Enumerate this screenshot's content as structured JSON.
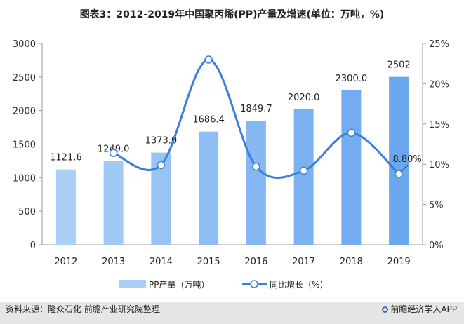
{
  "title": "图表3：2012-2019年中国聚丙烯(PP)产量及增速(单位：万吨，%)",
  "source": "资料来源：隆众石化 前瞻产业研究院整理",
  "brand": "前瞻经济学人APP",
  "brand_icon": "qianzhan-logo-icon",
  "colors": {
    "bar_start": "#a9cff7",
    "bar_end": "#6aa7ee",
    "line": "#3c7fd8",
    "marker_fill": "#ffffff",
    "axis": "#999999",
    "footer_bg": "#e6e6e6"
  },
  "chart_data": {
    "type": "bar",
    "categories": [
      "2012",
      "2013",
      "2014",
      "2015",
      "2016",
      "2017",
      "2018",
      "2019"
    ],
    "series": [
      {
        "name": "PP产量（万吨）",
        "type": "bar",
        "axis": "left",
        "values": [
          1121.6,
          1249.0,
          1373.0,
          1686.4,
          1849.7,
          2020.0,
          2300.0,
          2502
        ],
        "labels": [
          "1121.6",
          "1249.0",
          "1373.0",
          "1686.4",
          "1849.7",
          "2020.0",
          "2300.0",
          "2502"
        ]
      },
      {
        "name": "同比增长（%）",
        "type": "line",
        "axis": "right",
        "values": [
          null,
          11.4,
          9.9,
          23.0,
          9.7,
          9.2,
          13.9,
          8.8
        ]
      }
    ],
    "annotations": [
      {
        "text": "8.80%",
        "category": "2019",
        "series": "同比增长（%）"
      }
    ],
    "y_left": {
      "lim": [
        0,
        3000
      ],
      "ticks": [
        0,
        500,
        1000,
        1500,
        2000,
        2500,
        3000
      ],
      "tick_labels": [
        "0",
        "500",
        "1000",
        "1500",
        "2000",
        "2500",
        "3000"
      ]
    },
    "y_right": {
      "lim": [
        0,
        25
      ],
      "ticks": [
        0,
        5,
        10,
        15,
        20,
        25
      ],
      "tick_labels": [
        "0%",
        "5%",
        "10%",
        "15%",
        "20%",
        "25%"
      ]
    },
    "legend_position": "bottom-center",
    "grid": false
  }
}
